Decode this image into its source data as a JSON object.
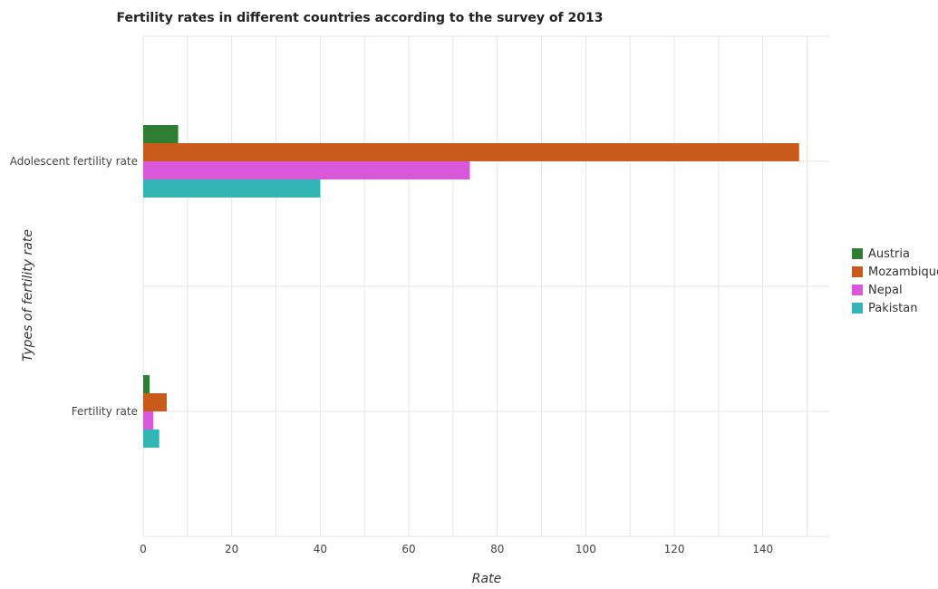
{
  "chart_data": {
    "type": "bar",
    "orientation": "horizontal",
    "title": "Fertility rates in different countries according to the survey of 2013",
    "xlabel": "Rate",
    "ylabel": "Types of fertility rate",
    "categories": [
      "Adolescent fertility rate",
      "Fertility rate"
    ],
    "series": [
      {
        "name": "Austria",
        "color": "#2e7d32",
        "values": [
          7.9,
          1.44
        ]
      },
      {
        "name": "Mozambique",
        "color": "#c85a1a",
        "values": [
          148.2,
          5.33
        ]
      },
      {
        "name": "Nepal",
        "color": "#d957d9",
        "values": [
          73.8,
          2.25
        ]
      },
      {
        "name": "Pakistan",
        "color": "#33b5b5",
        "values": [
          40.0,
          3.63
        ]
      }
    ],
    "xlim": [
      0,
      155
    ],
    "xticks": [
      0,
      20,
      40,
      60,
      80,
      100,
      120,
      140
    ],
    "grid": true,
    "legend_position": "right"
  }
}
